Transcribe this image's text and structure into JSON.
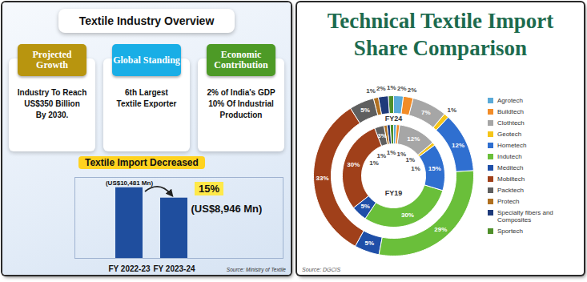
{
  "infographic": {
    "title": "Textile Industry Overview",
    "cards": [
      {
        "heading": "Projected Growth",
        "lines": [
          "Industry To Reach",
          "US$350 Billion",
          "By 2030."
        ]
      },
      {
        "heading": "Global Standing",
        "lines": [
          "6th Largest",
          "Textile Exporter"
        ]
      },
      {
        "heading": "Economic Contribution",
        "lines": [
          "2% of India's GDP",
          "10% Of Industrial",
          "Production"
        ]
      }
    ],
    "source": "Source: Ministry of Textile"
  },
  "chart_data": [
    {
      "type": "bar",
      "title": "Textile Import Decreased",
      "categories": [
        "FY 2022-23",
        "FY 2023-24"
      ],
      "values": [
        10481,
        8946
      ],
      "value_labels": [
        "(US$10,481 Mn)",
        "(US$8,946 Mn)"
      ],
      "data_labels": true,
      "annotation": "15%",
      "color": "#1f4e9e",
      "ylim": [
        0,
        12000
      ],
      "yticks": [],
      "tick_labels": "x"
    },
    {
      "type": "donut",
      "title": "Technical Textile Import Share Comparison",
      "categories": [
        "Agrotech",
        "Buildtech",
        "Clothtech",
        "Geotech",
        "Hometech",
        "Indutech",
        "Meditech",
        "Mobiltech",
        "Packtech",
        "Protech",
        "Specialty fibers and Composites",
        "Sportech"
      ],
      "colors": [
        "#5aaad8",
        "#f28c28",
        "#a6a6a6",
        "#f5c518",
        "#2f6fd0",
        "#6abf3a",
        "#1f4fa8",
        "#a0401a",
        "#5f5f5f",
        "#b07020",
        "#1f3a7a",
        "#4f8f2a"
      ],
      "series": [
        {
          "name": "FY24",
          "values": [
            2,
            2,
            7,
            1,
            12,
            29,
            5,
            33,
            5,
            1,
            2,
            1
          ],
          "value_labels": [
            "2%",
            "2%",
            "7%",
            "1%",
            "12%",
            "29%",
            "5%",
            "33%",
            "5%",
            "1%",
            "2%",
            "1%"
          ]
        },
        {
          "name": "FY19",
          "values": [
            1,
            1,
            12,
            1,
            15,
            30,
            5,
            30,
            3,
            1,
            1,
            1
          ],
          "value_labels": [
            "1%",
            "1%",
            "12%",
            "1%",
            "15%",
            "30%",
            "5%",
            "30%",
            "3%",
            "1%",
            "1%",
            "1%"
          ]
        }
      ],
      "data_labels": true,
      "legend": "right",
      "source": "Source: DGCIS"
    }
  ]
}
